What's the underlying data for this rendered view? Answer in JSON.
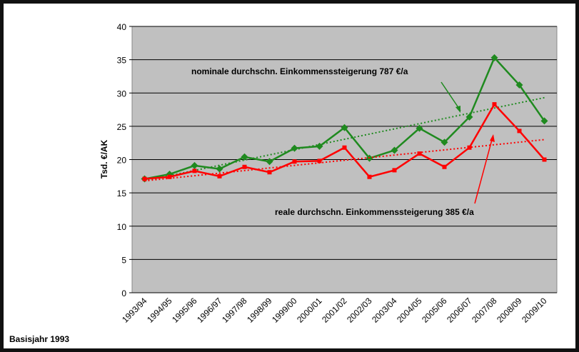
{
  "chart_data": {
    "type": "line",
    "y_label": "Tsd. €/AK",
    "footnote": "Basisjahr 1993",
    "categories": [
      "1993/94",
      "1994/95",
      "1995/96",
      "1996/97",
      "1997/98",
      "1998/99",
      "1999/00",
      "2000/01",
      "2001/02",
      "2002/03",
      "2003/04",
      "2004/05",
      "2005/06",
      "2006/07",
      "2007/08",
      "2008/09",
      "2009/10"
    ],
    "series": [
      {
        "color": "#1f8a1f",
        "marker": "diamond",
        "values": [
          17.1,
          17.8,
          19.1,
          18.6,
          20.4,
          19.7,
          21.7,
          22.0,
          24.8,
          20.2,
          21.4,
          24.7,
          22.6,
          26.4,
          35.3,
          31.2,
          25.8
        ],
        "trend": [
          16.8,
          29.3
        ]
      },
      {
        "color": "#ff0000",
        "marker": "square",
        "values": [
          17.1,
          17.4,
          18.3,
          17.5,
          18.9,
          18.1,
          19.7,
          19.8,
          21.8,
          17.4,
          18.4,
          20.9,
          18.9,
          21.8,
          28.3,
          24.3,
          20.0
        ],
        "trend": [
          16.8,
          23.0
        ]
      }
    ],
    "annotations": [
      "nominale durchschn. Einkommenssteigerung 787 €/a",
      "reale durchschn. Einkommenssteigerung 385 €/a"
    ],
    "ylim": [
      0,
      40
    ],
    "yticks": [
      0,
      5,
      10,
      15,
      20,
      25,
      30,
      35,
      40
    ],
    "grid": true
  }
}
